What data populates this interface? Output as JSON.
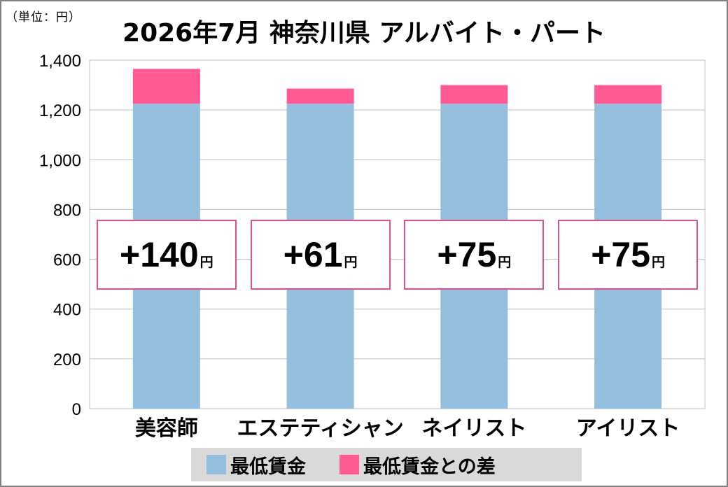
{
  "unit_label": "（単位：円）",
  "title": "2026年7月 神奈川県 アルバイト・パート",
  "colors": {
    "base": "#94bede",
    "diff": "#ff5a91",
    "box_border": "#e0508a",
    "grid": "#bfbfbf"
  },
  "chart_data": {
    "type": "bar",
    "stacked": true,
    "categories": [
      "美容師",
      "エステティシャン",
      "ネイリスト",
      "アイリスト"
    ],
    "series": [
      {
        "name": "最低賃金",
        "values": [
          1225,
          1225,
          1225,
          1225
        ]
      },
      {
        "name": "最低賃金との差",
        "values": [
          140,
          61,
          75,
          75
        ]
      }
    ],
    "ylim": [
      0,
      1400
    ],
    "yticks": [
      "0",
      "200",
      "400",
      "600",
      "800",
      "1,000",
      "1,200",
      "1,400"
    ],
    "grid": true,
    "legend_position": "bottom",
    "annotations": [
      {
        "value": "+140",
        "unit": "円"
      },
      {
        "value": "+61",
        "unit": "円"
      },
      {
        "value": "+75",
        "unit": "円"
      },
      {
        "value": "+75",
        "unit": "円"
      }
    ]
  }
}
